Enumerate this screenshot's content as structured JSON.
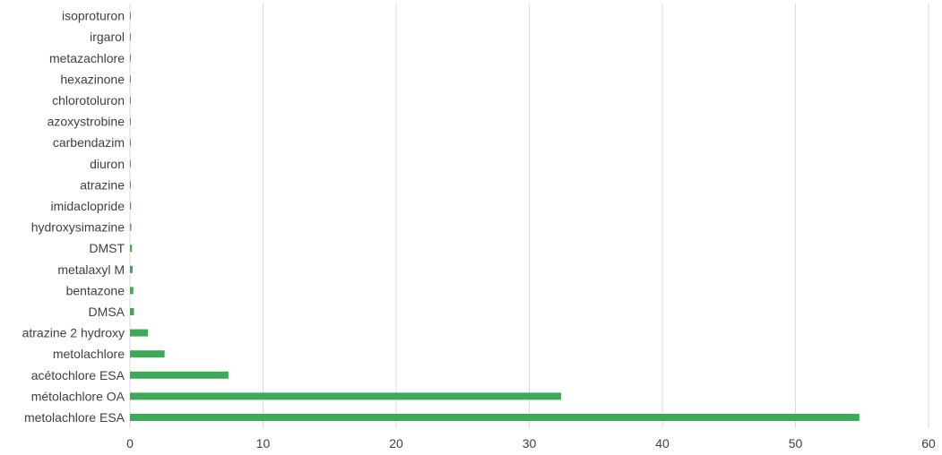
{
  "chart_data": {
    "type": "bar",
    "orientation": "horizontal",
    "categories": [
      "metolachlore ESA",
      "métolachlore OA",
      "acétochlore ESA",
      "metolachlore",
      "atrazine 2 hydroxy",
      "DMSA",
      "bentazone",
      "metalaxyl M",
      "DMST",
      "hydroxysimazine",
      "imidaclopride",
      "atrazine",
      "diuron",
      "carbendazim",
      "azoxystrobine",
      "chlorotoluron",
      "hexazinone",
      "metazachlore",
      "irgarol",
      "isoproturon"
    ],
    "values": [
      54.8,
      32.4,
      7.4,
      2.6,
      1.35,
      0.3,
      0.25,
      0.2,
      0.15,
      0.1,
      0.08,
      0.07,
      0.06,
      0.05,
      0.04,
      0.03,
      0.03,
      0.02,
      0.01,
      0.01
    ],
    "xlim": [
      0,
      60
    ],
    "x_ticks": [
      "0",
      "10",
      "20",
      "30",
      "40",
      "50",
      "60"
    ],
    "grid": true,
    "bar_color": "#3daa58",
    "legend": "none",
    "title": "",
    "xlabel": "",
    "ylabel": ""
  }
}
